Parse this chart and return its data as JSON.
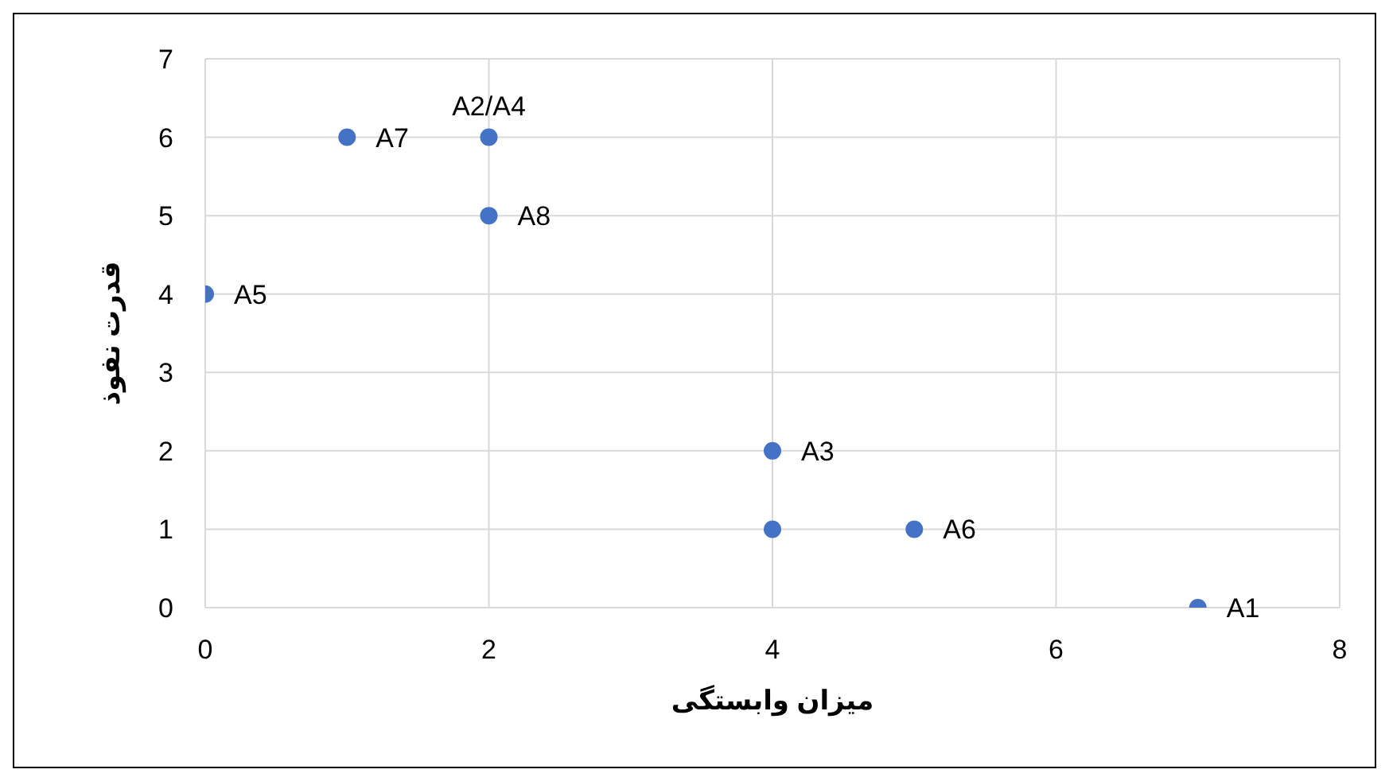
{
  "chart_data": {
    "type": "scatter",
    "xlabel": "میزان وابستگی",
    "ylabel": "قدرت نفوذ",
    "x": [
      7,
      2,
      4,
      0,
      5,
      1,
      2,
      4
    ],
    "values": [
      0,
      6,
      2,
      4,
      1,
      6,
      5,
      1
    ],
    "color": "#4472c4",
    "marker": "circle",
    "xlim": [
      0,
      8
    ],
    "xticks": [
      0,
      2,
      4,
      6,
      8
    ],
    "ylim": [
      0,
      7
    ],
    "yticks": [
      0,
      1,
      2,
      3,
      4,
      5,
      6,
      7
    ],
    "grid": true,
    "legend": false,
    "annotations": [
      {
        "text": "A1",
        "x": 7,
        "y": 0
      },
      {
        "text": "A2/A4",
        "x": 2,
        "y": 6
      },
      {
        "text": "A3",
        "x": 4,
        "y": 2
      },
      {
        "text": "A5",
        "x": 0,
        "y": 4
      },
      {
        "text": "A6",
        "x": 5,
        "y": 1
      },
      {
        "text": "A7",
        "x": 1,
        "y": 6
      },
      {
        "text": "A8",
        "x": 2,
        "y": 5
      }
    ]
  }
}
